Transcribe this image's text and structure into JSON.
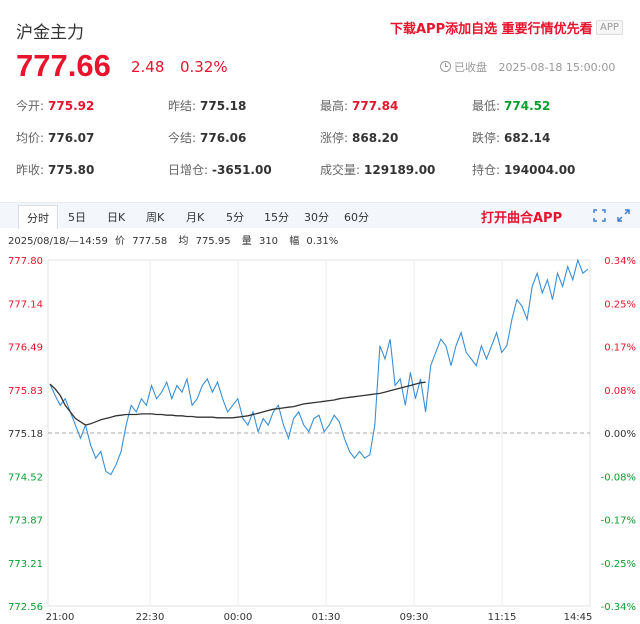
{
  "header": {
    "title": "沪金主力",
    "promo": "下载APP添加自选 重要行情优先看",
    "app_badge": "APP",
    "price": "777.66",
    "change": "2.48",
    "change_pct": "0.32%",
    "status": "已收盘",
    "datetime": "2025-08-18 15:00:00"
  },
  "stats": [
    [
      {
        "label": "今开:",
        "value": "775.92",
        "tone": "up"
      },
      {
        "label": "昨结:",
        "value": "775.18",
        "tone": ""
      },
      {
        "label": "最高:",
        "value": "777.84",
        "tone": "up"
      },
      {
        "label": "最低:",
        "value": "774.52",
        "tone": "down"
      }
    ],
    [
      {
        "label": "均价:",
        "value": "776.07",
        "tone": ""
      },
      {
        "label": "今结:",
        "value": "776.06",
        "tone": ""
      },
      {
        "label": "涨停:",
        "value": "868.20",
        "tone": ""
      },
      {
        "label": "跌停:",
        "value": "682.14",
        "tone": ""
      }
    ],
    [
      {
        "label": "昨收:",
        "value": "775.80",
        "tone": ""
      },
      {
        "label": "日增仓:",
        "value": "-3651.00",
        "tone": ""
      },
      {
        "label": "成交量:",
        "value": "129189.00",
        "tone": ""
      },
      {
        "label": "持仓:",
        "value": "194004.00",
        "tone": ""
      }
    ]
  ],
  "tabs": [
    "分时",
    "5日",
    "日K",
    "周K",
    "月K",
    "5分",
    "15分",
    "30分",
    "60分"
  ],
  "tab_active": "分时",
  "tab_app": "打开曲合APP",
  "icons": [
    "fullscreen-icon",
    "expand-icon"
  ],
  "info": {
    "time": "2025/08/18/—14:59",
    "price_label": "价",
    "price": "777.58",
    "avg_label": "均",
    "avg": "775.95",
    "vol_label": "量",
    "vol": "310",
    "amp_label": "幅",
    "amp": "0.31%"
  },
  "colors": {
    "up": "#e6142d",
    "down": "#0a9e2f",
    "price_line": "#3a8fd6",
    "avg_line": "#333333"
  },
  "chart_data": {
    "type": "line",
    "x_ticks": [
      "21:00",
      "22:30",
      "00:00",
      "01:30",
      "09:30",
      "11:15",
      "14:45"
    ],
    "y_left_ticks": [
      "777.80",
      "777.14",
      "776.49",
      "775.83",
      "775.18",
      "774.52",
      "773.87",
      "773.21",
      "772.56"
    ],
    "y_right_ticks": [
      "0.34%",
      "0.25%",
      "0.17%",
      "0.08%",
      "0.00%",
      "-0.08%",
      "-0.17%",
      "-0.25%",
      "-0.34%"
    ],
    "ylim": [
      772.56,
      777.8
    ],
    "baseline": 775.18,
    "series": [
      {
        "values": [
          775.92,
          775.75,
          775.6,
          775.7,
          775.5,
          775.3,
          775.1,
          775.3,
          775.0,
          774.8,
          774.9,
          774.6,
          774.55,
          774.7,
          774.9,
          775.3,
          775.6,
          775.5,
          775.7,
          775.6,
          775.9,
          775.7,
          775.8,
          775.95,
          775.7,
          775.9,
          775.8,
          776.0,
          775.6,
          775.7,
          775.9,
          776.0,
          775.8,
          775.95,
          775.7,
          775.5,
          775.6,
          775.7,
          775.4,
          775.3,
          775.5,
          775.2,
          775.4,
          775.3,
          775.5,
          775.6,
          775.3,
          775.1,
          775.4,
          775.5,
          775.3,
          775.2,
          775.4,
          775.45,
          775.2,
          775.3,
          775.45,
          775.35,
          775.1,
          774.9,
          774.8,
          774.9,
          774.8,
          774.85,
          775.3,
          776.5,
          776.3,
          776.6,
          775.9,
          776.0,
          775.6,
          776.1,
          775.7,
          776.0,
          775.5,
          776.2,
          776.4,
          776.6,
          776.5,
          776.2,
          776.5,
          776.7,
          776.4,
          776.3,
          776.2,
          776.5,
          776.3,
          776.5,
          776.7,
          776.4,
          776.5,
          776.9,
          777.2,
          777.1,
          776.9,
          777.4,
          777.6,
          777.3,
          777.5,
          777.2,
          777.6,
          777.4,
          777.7,
          777.5,
          777.8,
          777.6,
          777.66
        ]
      },
      {
        "values": [
          775.92,
          775.85,
          775.75,
          775.6,
          775.5,
          775.4,
          775.35,
          775.3,
          775.32,
          775.35,
          775.38,
          775.4,
          775.42,
          775.44,
          775.45,
          775.46,
          775.46,
          775.46,
          775.47,
          775.47,
          775.47,
          775.46,
          775.46,
          775.45,
          775.45,
          775.44,
          775.44,
          775.43,
          775.43,
          775.42,
          775.42,
          775.42,
          775.42,
          775.41,
          775.41,
          775.41,
          775.41,
          775.42,
          775.43,
          775.44,
          775.46,
          775.48,
          775.5,
          775.52,
          775.54,
          775.55,
          775.56,
          775.57,
          775.58,
          775.6,
          775.62,
          775.63,
          775.64,
          775.65,
          775.66,
          775.67,
          775.68,
          775.7,
          775.71,
          775.72,
          775.73,
          775.74,
          775.75,
          775.76,
          775.77,
          775.78,
          775.8,
          775.82,
          775.84,
          775.86,
          775.88,
          775.9,
          775.92,
          775.94,
          775.95
        ]
      }
    ]
  }
}
